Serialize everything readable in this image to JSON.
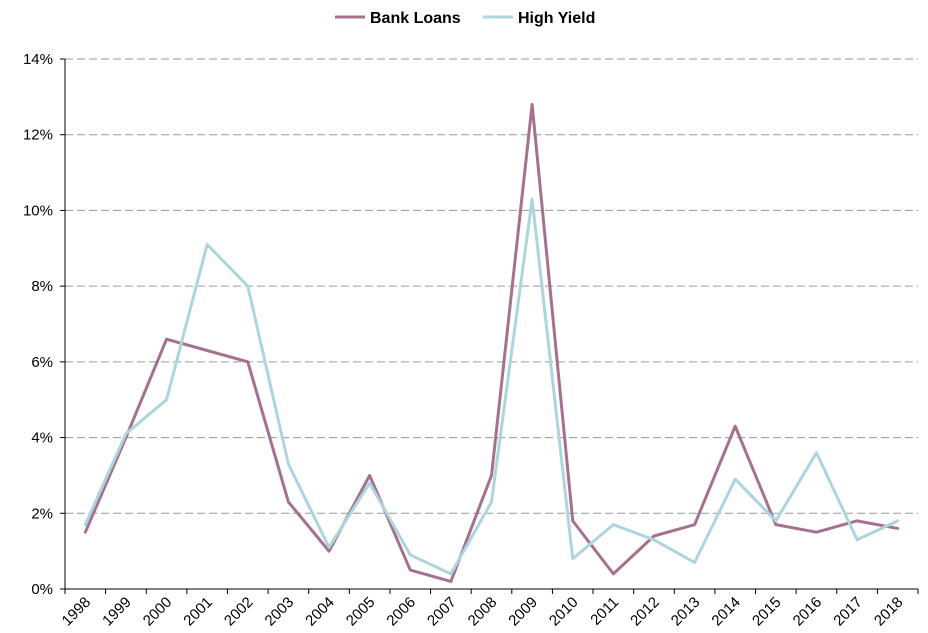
{
  "chart_data": {
    "type": "line",
    "title": "",
    "xlabel": "",
    "ylabel": "",
    "categories": [
      "1998",
      "1999",
      "2000",
      "2001",
      "2002",
      "2003",
      "2004",
      "2005",
      "2006",
      "2007",
      "2008",
      "2009",
      "2010",
      "2011",
      "2012",
      "2013",
      "2014",
      "2015",
      "2016",
      "2017",
      "2018"
    ],
    "ylim": [
      0,
      14
    ],
    "yticks": [
      0,
      2,
      4,
      6,
      8,
      10,
      12,
      14
    ],
    "ytick_labels": [
      "0%",
      "2%",
      "4%",
      "6%",
      "8%",
      "10%",
      "12%",
      "14%"
    ],
    "grid": "horizontal dashed",
    "legend_position": "top-center",
    "series": [
      {
        "name": "Bank Loans",
        "color": "#A5718E",
        "values": [
          1.5,
          4.0,
          6.6,
          6.3,
          6.0,
          2.3,
          1.0,
          3.0,
          0.5,
          0.2,
          3.0,
          12.8,
          1.8,
          0.4,
          1.4,
          1.7,
          4.3,
          1.7,
          1.5,
          1.8,
          1.6
        ]
      },
      {
        "name": "High Yield",
        "color": "#ADD5DE",
        "values": [
          1.7,
          4.1,
          5.0,
          9.1,
          8.0,
          3.3,
          1.1,
          2.8,
          0.9,
          0.4,
          2.3,
          10.3,
          0.8,
          1.7,
          1.3,
          0.7,
          2.9,
          1.8,
          3.6,
          1.3,
          1.8
        ]
      }
    ]
  }
}
